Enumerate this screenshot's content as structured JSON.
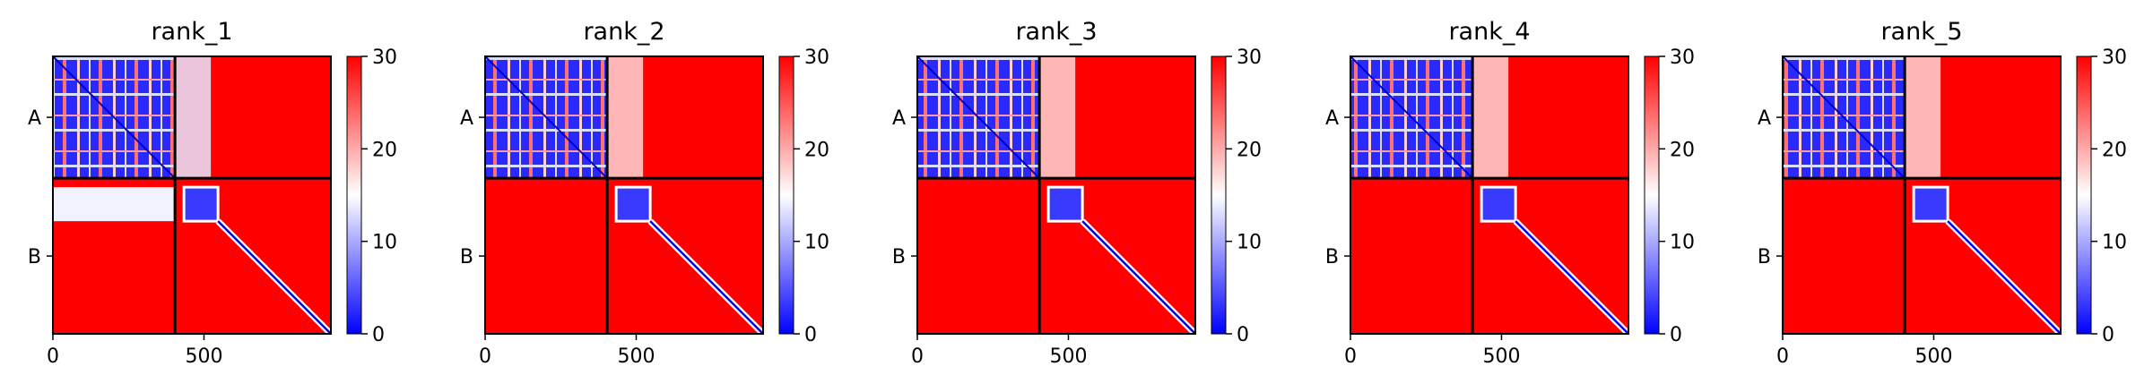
{
  "chart_data": {
    "type": "heatmap",
    "colormap": {
      "name": "bwr",
      "low_color": "#0000ff",
      "mid_color": "#ffffff",
      "high_color": "#ff0000",
      "vmin": 0,
      "vmax": 30,
      "ticks": [
        0,
        10,
        20,
        30
      ]
    },
    "x_range": [
      0,
      920
    ],
    "x_ticks": [
      0,
      500
    ],
    "chain_boundary": 404,
    "chain_labels": [
      "A",
      "B"
    ],
    "panels": [
      {
        "title": "rank_1"
      },
      {
        "title": "rank_2"
      },
      {
        "title": "rank_3"
      },
      {
        "title": "rank_4"
      },
      {
        "title": "rank_5"
      }
    ]
  }
}
